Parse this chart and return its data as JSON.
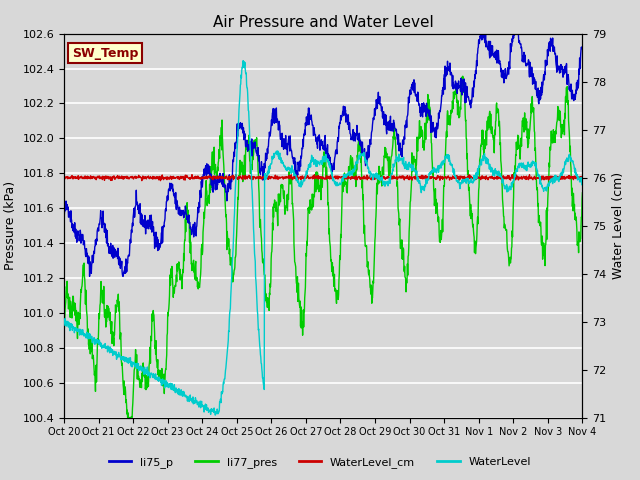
{
  "title": "Air Pressure and Water Level",
  "ylabel_left": "Pressure (kPa)",
  "ylabel_right": "Water Level (cm)",
  "ylim_left": [
    100.4,
    102.6
  ],
  "ylim_right": [
    71.0,
    79.0
  ],
  "yticks_left": [
    100.4,
    100.6,
    100.8,
    101.0,
    101.2,
    101.4,
    101.6,
    101.8,
    102.0,
    102.2,
    102.4,
    102.6
  ],
  "yticks_right": [
    71.0,
    72.0,
    73.0,
    74.0,
    75.0,
    76.0,
    77.0,
    78.0,
    79.0
  ],
  "background_color": "#d8d8d8",
  "plot_bg_color": "#d8d8d8",
  "grid_color": "#ffffff",
  "annotation_box": {
    "label": "SW_Temp",
    "facecolor": "#ffffcc",
    "edgecolor": "#8b0000",
    "textcolor": "#8b0000"
  },
  "legend_entries": [
    {
      "label": "li75_p",
      "color": "#0000cc",
      "lw": 1.2
    },
    {
      "label": "li77_pres",
      "color": "#00cc00",
      "lw": 1.2
    },
    {
      "label": "WaterLevel_cm",
      "color": "#cc0000",
      "lw": 1.2
    },
    {
      "label": "WaterLevel",
      "color": "#00cccc",
      "lw": 1.2
    }
  ],
  "xtick_labels": [
    "Oct 20",
    "Oct 21",
    "Oct 22",
    "Oct 23",
    "Oct 24",
    "Oct 25",
    "Oct 26",
    "Oct 27",
    "Oct 28",
    "Oct 29",
    "Oct 30",
    "Oct 31",
    "Nov 1",
    "Nov 2",
    "Nov 3",
    "Nov 4"
  ],
  "num_days": 15,
  "seed": 42
}
